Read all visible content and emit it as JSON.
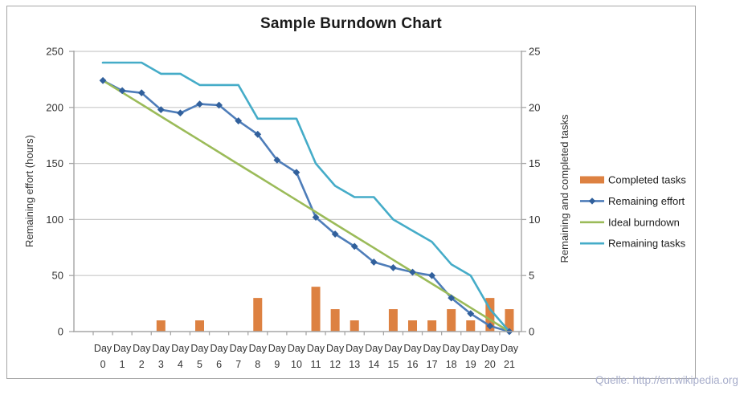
{
  "title": "Sample Burndown Chart",
  "source_note": "Quelle: http://en.wikipedia.org",
  "colors": {
    "completed_tasks": "#dd8141",
    "remaining_effort_line": "#4e7db9",
    "remaining_effort_marker": "#31609c",
    "ideal_burndown": "#9bbb59",
    "remaining_tasks": "#45acc8",
    "gridline": "#c9c9c9",
    "axis_line": "#a6a6a6",
    "tick_text": "#333333"
  },
  "chart_data": {
    "type": "combo bar+line",
    "title": "Sample Burndown Chart",
    "grid": true,
    "legend_position": "right",
    "x_axis": {
      "category_prefix": "Day",
      "categories": [
        "0",
        "1",
        "2",
        "3",
        "4",
        "5",
        "6",
        "7",
        "8",
        "9",
        "10",
        "11",
        "12",
        "13",
        "14",
        "15",
        "16",
        "17",
        "18",
        "19",
        "20",
        "21"
      ]
    },
    "left_axis": {
      "title": "Remaining effort (hours)",
      "min": 0,
      "max": 250,
      "tick_step": 50,
      "ticks": [
        0,
        50,
        100,
        150,
        200,
        250
      ]
    },
    "right_axis": {
      "title": "Remaining and  completed tasks",
      "min": 0,
      "max": 25,
      "tick_step": 5,
      "ticks": [
        0,
        5,
        10,
        15,
        20,
        25
      ]
    },
    "series": [
      {
        "name": "Completed tasks",
        "type": "bar",
        "axis": "right",
        "color": "#dd8141",
        "values": [
          0,
          0,
          0,
          1,
          0,
          1,
          0,
          0,
          3,
          0,
          0,
          4,
          2,
          1,
          0,
          2,
          1,
          1,
          2,
          1,
          3,
          2
        ]
      },
      {
        "name": "Remaining effort",
        "type": "line-diamond",
        "axis": "left",
        "color": "#4e7db9",
        "marker_color": "#31609c",
        "values": [
          224,
          215,
          213,
          198,
          195,
          203,
          202,
          188,
          176,
          153,
          142,
          102,
          87,
          76,
          62,
          57,
          53,
          50,
          30,
          16,
          5,
          0
        ]
      },
      {
        "name": "Ideal burndown",
        "type": "line",
        "axis": "left",
        "color": "#9bbb59",
        "values": [
          224,
          213.3,
          202.7,
          192,
          181.3,
          170.7,
          160,
          149.3,
          138.7,
          128,
          117.3,
          106.7,
          96,
          85.3,
          74.7,
          64,
          53.3,
          42.7,
          32,
          21.3,
          10.7,
          0
        ]
      },
      {
        "name": "Remaining tasks",
        "type": "line",
        "axis": "right",
        "color": "#45acc8",
        "values": [
          24,
          24,
          24,
          23,
          23,
          22,
          22,
          22,
          19,
          19,
          19,
          15,
          13,
          12,
          12,
          10,
          9,
          8,
          6,
          5,
          2,
          0
        ]
      }
    ]
  }
}
